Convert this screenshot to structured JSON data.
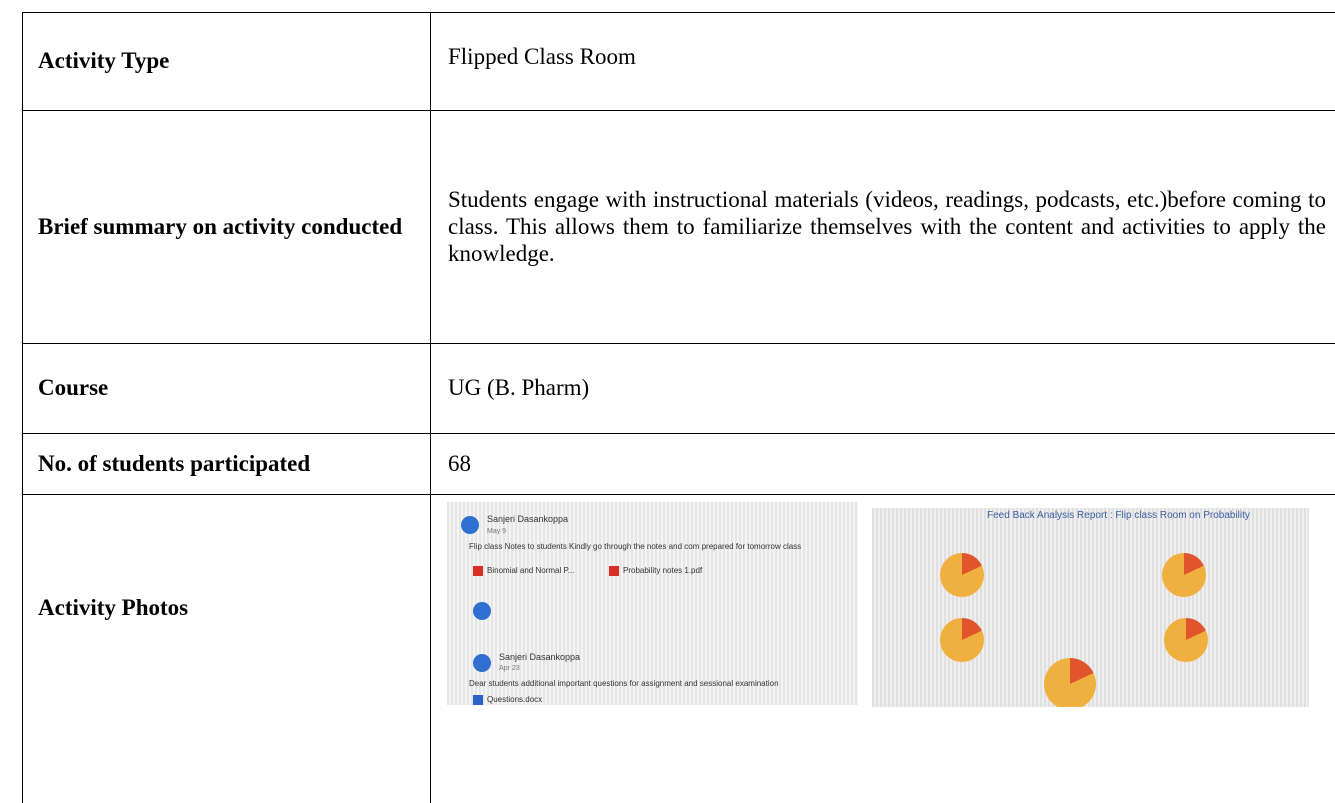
{
  "table": {
    "rows": [
      [
        "Activity Type",
        "Flipped Class Room"
      ],
      [
        "Brief summary on activity conducted",
        "Students engage with instructional materials (videos, readings, podcasts, etc.)before coming to class. This allows them to familiarize themselves with the content and activities to apply the knowledge."
      ],
      [
        "Course",
        "UG (B. Pharm)"
      ],
      [
        "No. of students participated",
        "68"
      ],
      [
        "Activity Photos"
      ]
    ]
  },
  "photos": [
    {
      "posts": [
        {
          "author": "Sanjeri Dasankoppa",
          "date": "May 9",
          "text": "Flip class Notes to students Kindly go through the notes and com prepared for tomorrow class",
          "files": [
            "Binomial and Normal P...",
            "Probability notes 1.pdf"
          ]
        },
        {
          "author": "Sanjeri Dasankoppa",
          "date": "Apr 23",
          "text": "Dear students additional important questions for assignment and sessional examination",
          "files": [
            "Questions.docx"
          ]
        }
      ]
    },
    {
      "title": "Feed Back Analysis Report : Flip class Room on Probability"
    }
  ]
}
